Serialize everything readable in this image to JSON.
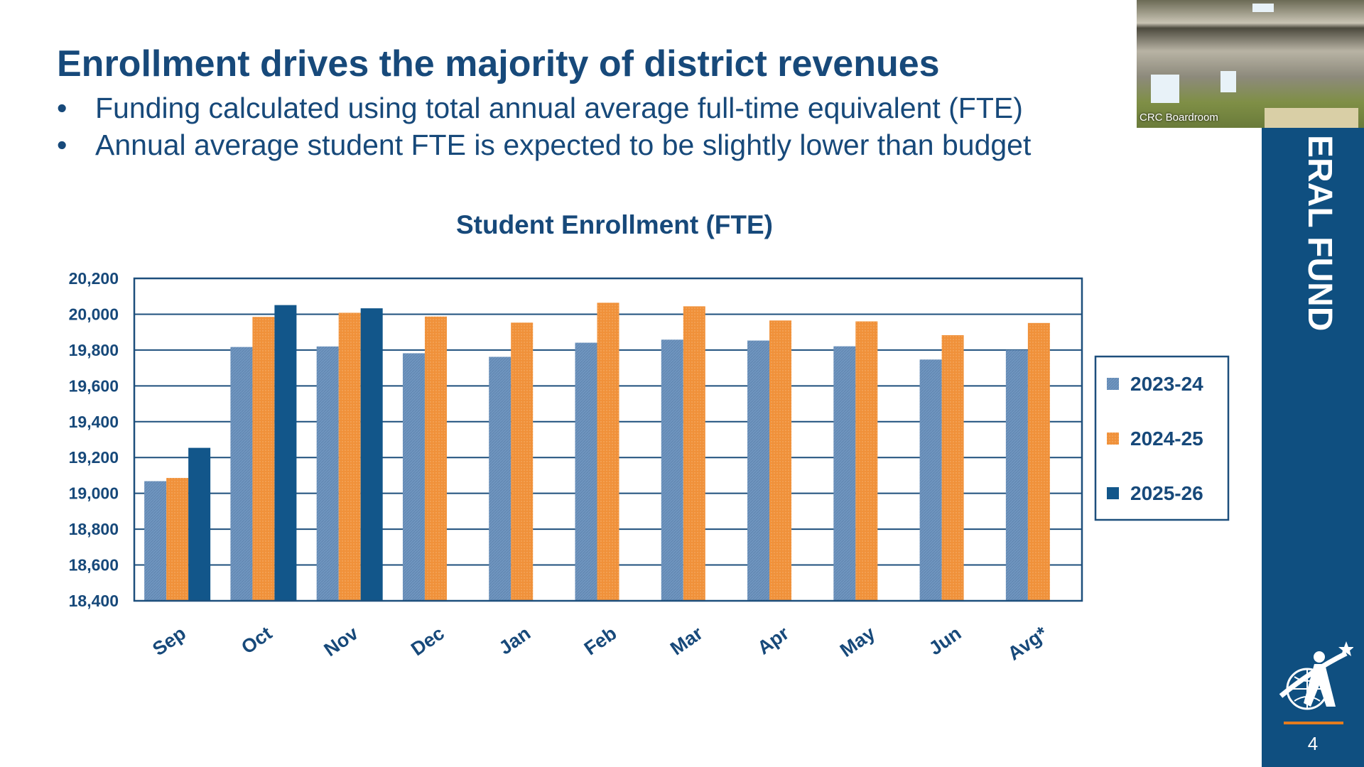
{
  "slide": {
    "title": "Enrollment drives the majority of district revenues",
    "bullets": [
      "Funding calculated using total annual average full-time equivalent (FTE)",
      "Annual average student FTE is expected to be slightly lower than budget"
    ],
    "side_label": "ERAL FUND",
    "page_number": "4"
  },
  "webcam": {
    "label": "CRC Boardroom"
  },
  "colors": {
    "primary": "#17497a",
    "series_2023": "#7096c0",
    "series_2024": "#f0913a",
    "series_2025": "#12568a",
    "sidebar": "#0f4f80"
  },
  "chart_data": {
    "type": "bar",
    "title": "Student Enrollment (FTE)",
    "xlabel": "",
    "ylabel": "",
    "ylim": [
      18400,
      20200
    ],
    "yticks": [
      18400,
      18600,
      18800,
      19000,
      19200,
      19400,
      19600,
      19800,
      20000,
      20200
    ],
    "ytick_labels": [
      "18,400",
      "18,600",
      "18,800",
      "19,000",
      "19,200",
      "19,400",
      "19,600",
      "19,800",
      "20,000",
      "20,200"
    ],
    "grid": true,
    "legend_placement": "right",
    "categories": [
      "Sep",
      "Oct",
      "Nov",
      "Dec",
      "Jan",
      "Feb",
      "Mar",
      "Apr",
      "May",
      "Jun",
      "Avg*"
    ],
    "series": [
      {
        "name": "2023-24",
        "values": [
          19068,
          19817,
          19820,
          19782,
          19762,
          19841,
          19858,
          19853,
          19821,
          19747,
          19800
        ]
      },
      {
        "name": "2024-25",
        "values": [
          19086,
          19985,
          20008,
          19987,
          19953,
          20064,
          20044,
          19965,
          19960,
          19883,
          19951
        ]
      },
      {
        "name": "2025-26",
        "values": [
          19254,
          20051,
          20033,
          null,
          null,
          null,
          null,
          null,
          null,
          null,
          null
        ]
      }
    ]
  }
}
